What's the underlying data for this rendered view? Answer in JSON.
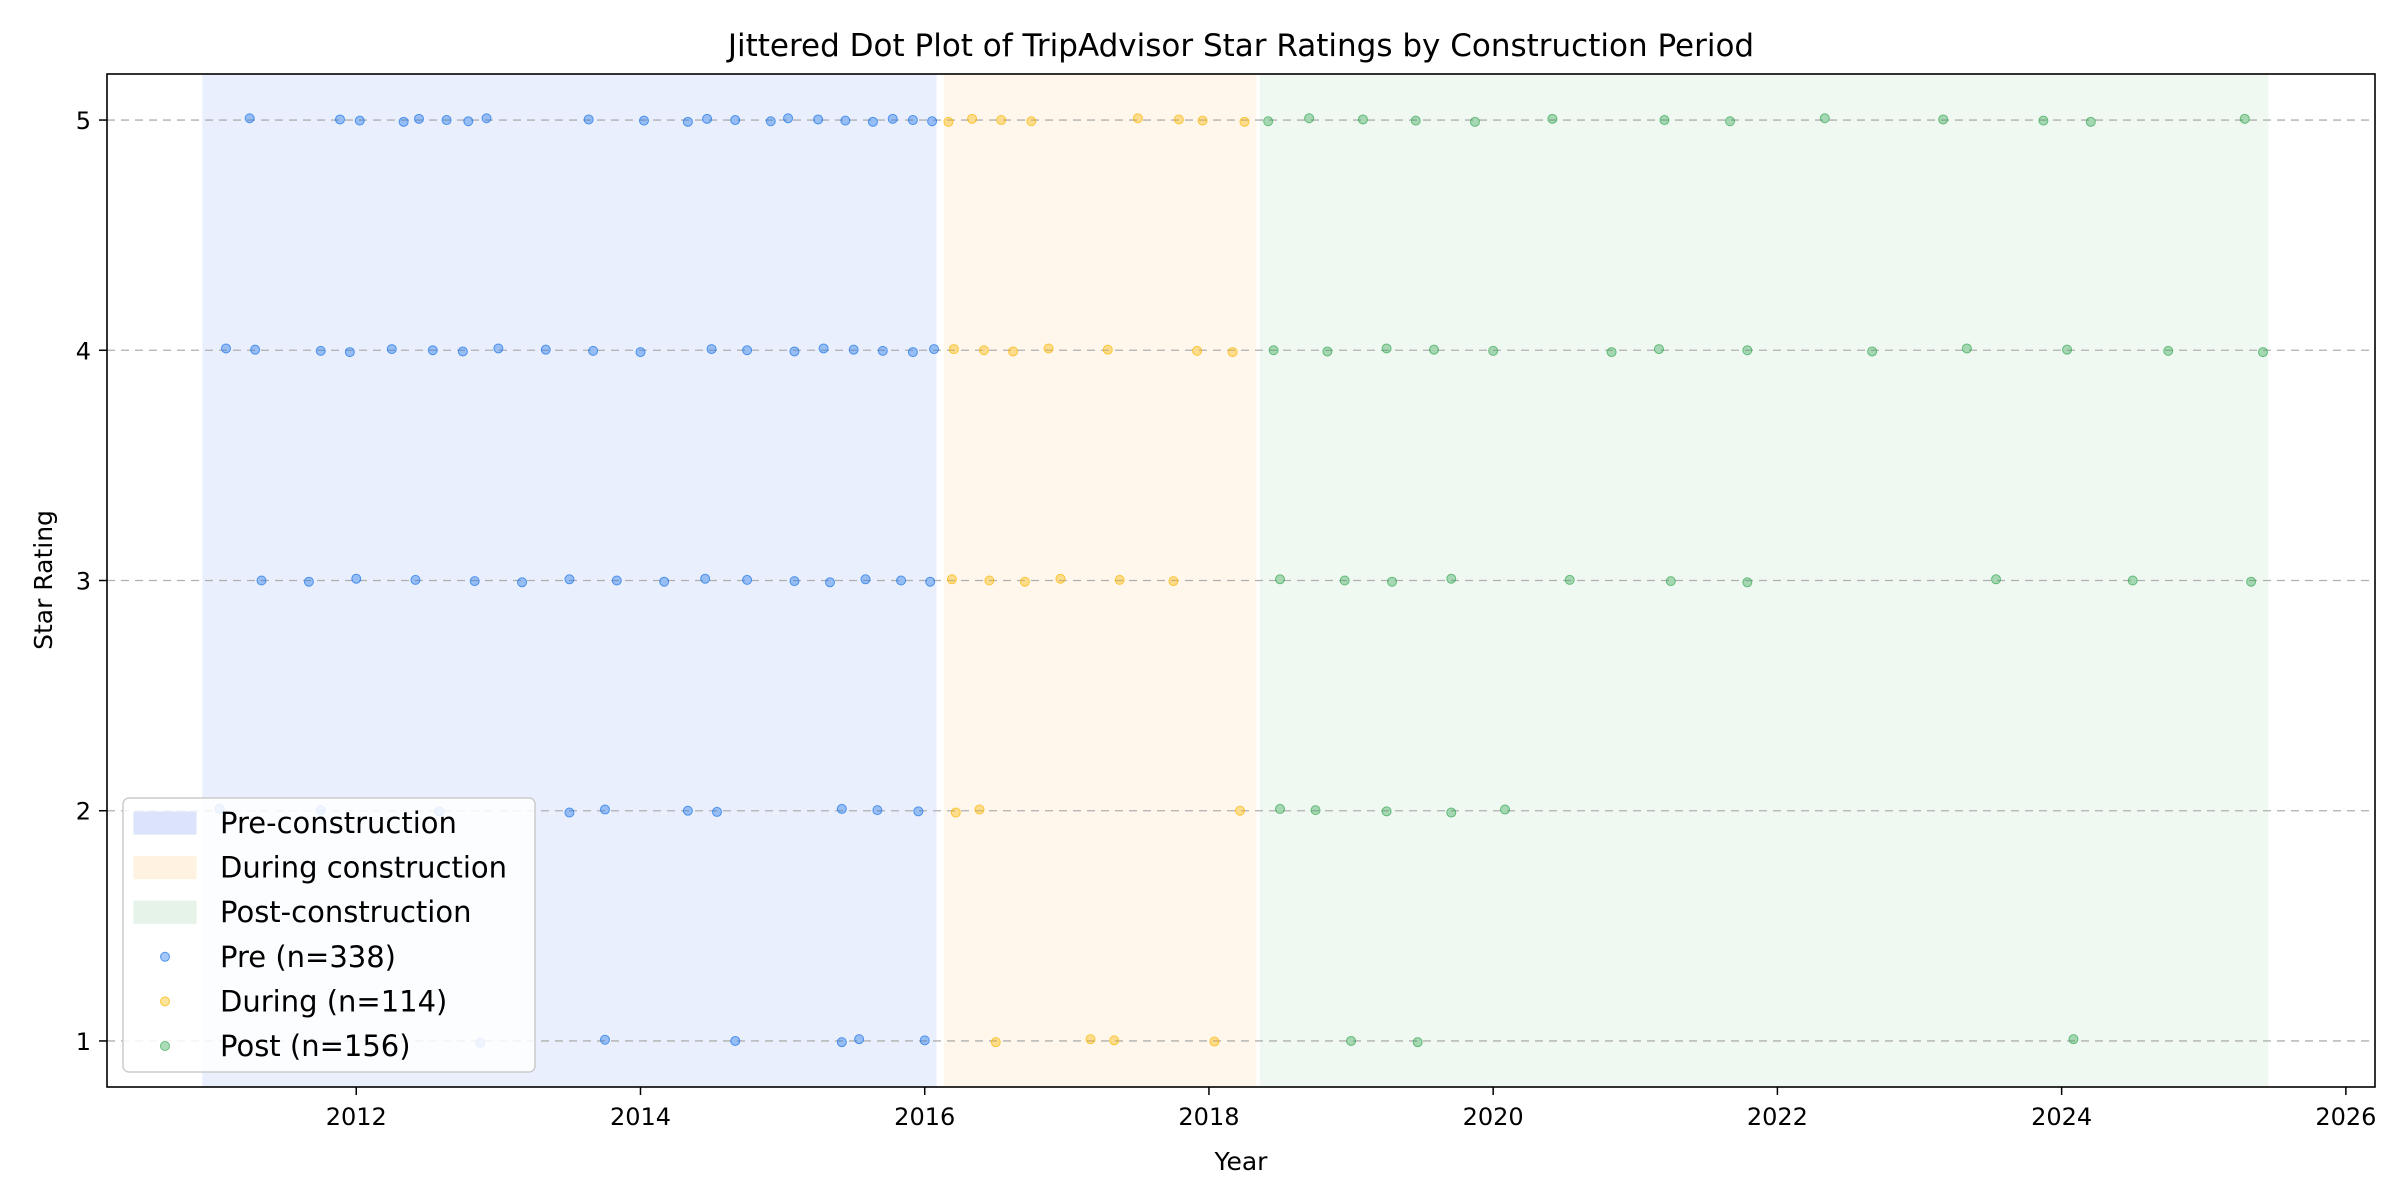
{
  "chart_data": {
    "type": "scatter",
    "title": "Jittered Dot Plot of TripAdvisor Star Ratings by Construction Period",
    "xlabel": "Year",
    "ylabel": "Star Rating",
    "xlim": [
      "2010-03-30",
      "2026-03-15"
    ],
    "ylim": [
      0.8,
      5.2
    ],
    "x_ticks": [
      "2012",
      "2014",
      "2016",
      "2018",
      "2020",
      "2022",
      "2024",
      "2026"
    ],
    "y_ticks": [
      1,
      2,
      3,
      4,
      5
    ],
    "grid": "horizontal dashed",
    "legend_position": "bottom-left",
    "periods": [
      {
        "name": "Pre-construction",
        "start": "2010-12-01",
        "end": "2016-02-01",
        "color": "#dbe4fa"
      },
      {
        "name": "During construction",
        "start": "2016-02-20",
        "end": "2018-05-01",
        "color": "#fff2e0"
      },
      {
        "name": "Post-construction",
        "start": "2018-05-10",
        "end": "2025-06-15",
        "color": "#e6f3e9"
      }
    ],
    "series": [
      {
        "name": "Pre (n=338)",
        "color": "#1a73e8",
        "points": [
          {
            "x": "2011-04-01",
            "y": 5
          },
          {
            "x": "2011-11-20",
            "y": 5
          },
          {
            "x": "2012-01-10",
            "y": 5
          },
          {
            "x": "2012-05-01",
            "y": 5
          },
          {
            "x": "2012-06-10",
            "y": 5
          },
          {
            "x": "2012-08-20",
            "y": 5
          },
          {
            "x": "2012-10-15",
            "y": 5
          },
          {
            "x": "2012-12-01",
            "y": 5
          },
          {
            "x": "2013-08-20",
            "y": 5
          },
          {
            "x": "2014-01-10",
            "y": 5
          },
          {
            "x": "2014-05-01",
            "y": 5
          },
          {
            "x": "2014-06-20",
            "y": 5
          },
          {
            "x": "2014-09-01",
            "y": 5
          },
          {
            "x": "2014-12-01",
            "y": 5
          },
          {
            "x": "2015-01-15",
            "y": 5
          },
          {
            "x": "2015-04-01",
            "y": 5
          },
          {
            "x": "2015-06-10",
            "y": 5
          },
          {
            "x": "2015-08-20",
            "y": 5
          },
          {
            "x": "2015-10-10",
            "y": 5
          },
          {
            "x": "2015-12-01",
            "y": 5
          },
          {
            "x": "2016-01-20",
            "y": 5
          },
          {
            "x": "2011-02-01",
            "y": 4
          },
          {
            "x": "2011-04-15",
            "y": 4
          },
          {
            "x": "2011-10-01",
            "y": 4
          },
          {
            "x": "2011-12-15",
            "y": 4
          },
          {
            "x": "2012-04-01",
            "y": 4
          },
          {
            "x": "2012-07-15",
            "y": 4
          },
          {
            "x": "2012-10-01",
            "y": 4
          },
          {
            "x": "2013-01-01",
            "y": 4
          },
          {
            "x": "2013-05-01",
            "y": 4
          },
          {
            "x": "2013-09-01",
            "y": 4
          },
          {
            "x": "2014-01-01",
            "y": 4
          },
          {
            "x": "2014-07-01",
            "y": 4
          },
          {
            "x": "2014-10-01",
            "y": 4
          },
          {
            "x": "2015-02-01",
            "y": 4
          },
          {
            "x": "2015-04-15",
            "y": 4
          },
          {
            "x": "2015-07-01",
            "y": 4
          },
          {
            "x": "2015-09-15",
            "y": 4
          },
          {
            "x": "2015-12-01",
            "y": 4
          },
          {
            "x": "2016-01-25",
            "y": 4
          },
          {
            "x": "2011-05-01",
            "y": 3
          },
          {
            "x": "2011-09-01",
            "y": 3
          },
          {
            "x": "2012-01-01",
            "y": 3
          },
          {
            "x": "2012-06-01",
            "y": 3
          },
          {
            "x": "2012-11-01",
            "y": 3
          },
          {
            "x": "2013-03-01",
            "y": 3
          },
          {
            "x": "2013-07-01",
            "y": 3
          },
          {
            "x": "2013-11-01",
            "y": 3
          },
          {
            "x": "2014-03-01",
            "y": 3
          },
          {
            "x": "2014-06-15",
            "y": 3
          },
          {
            "x": "2014-10-01",
            "y": 3
          },
          {
            "x": "2015-02-01",
            "y": 3
          },
          {
            "x": "2015-05-01",
            "y": 3
          },
          {
            "x": "2015-08-01",
            "y": 3
          },
          {
            "x": "2015-11-01",
            "y": 3
          },
          {
            "x": "2016-01-15",
            "y": 3
          },
          {
            "x": "2011-01-15",
            "y": 2
          },
          {
            "x": "2011-10-01",
            "y": 2
          },
          {
            "x": "2012-08-01",
            "y": 2
          },
          {
            "x": "2013-07-01",
            "y": 2
          },
          {
            "x": "2013-10-01",
            "y": 2
          },
          {
            "x": "2014-05-01",
            "y": 2
          },
          {
            "x": "2014-07-15",
            "y": 2
          },
          {
            "x": "2015-06-01",
            "y": 2
          },
          {
            "x": "2015-09-01",
            "y": 2
          },
          {
            "x": "2015-12-15",
            "y": 2
          },
          {
            "x": "2012-11-15",
            "y": 1
          },
          {
            "x": "2013-10-01",
            "y": 1
          },
          {
            "x": "2014-09-01",
            "y": 1
          },
          {
            "x": "2015-06-01",
            "y": 1
          },
          {
            "x": "2015-07-15",
            "y": 1
          },
          {
            "x": "2016-01-01",
            "y": 1
          }
        ]
      },
      {
        "name": "During (n=114)",
        "color": "#f9b700",
        "points": [
          {
            "x": "2016-03-01",
            "y": 5
          },
          {
            "x": "2016-05-01",
            "y": 5
          },
          {
            "x": "2016-07-15",
            "y": 5
          },
          {
            "x": "2016-10-01",
            "y": 5
          },
          {
            "x": "2017-07-01",
            "y": 5
          },
          {
            "x": "2017-10-15",
            "y": 5
          },
          {
            "x": "2017-12-15",
            "y": 5
          },
          {
            "x": "2018-04-01",
            "y": 5
          },
          {
            "x": "2016-03-15",
            "y": 4
          },
          {
            "x": "2016-06-01",
            "y": 4
          },
          {
            "x": "2016-08-15",
            "y": 4
          },
          {
            "x": "2016-11-15",
            "y": 4
          },
          {
            "x": "2017-04-15",
            "y": 4
          },
          {
            "x": "2017-12-01",
            "y": 4
          },
          {
            "x": "2018-03-01",
            "y": 4
          },
          {
            "x": "2016-03-10",
            "y": 3
          },
          {
            "x": "2016-06-15",
            "y": 3
          },
          {
            "x": "2016-09-15",
            "y": 3
          },
          {
            "x": "2016-12-15",
            "y": 3
          },
          {
            "x": "2017-05-15",
            "y": 3
          },
          {
            "x": "2017-10-01",
            "y": 3
          },
          {
            "x": "2016-03-20",
            "y": 2
          },
          {
            "x": "2016-05-20",
            "y": 2
          },
          {
            "x": "2018-03-20",
            "y": 2
          },
          {
            "x": "2016-07-01",
            "y": 1
          },
          {
            "x": "2017-03-01",
            "y": 1
          },
          {
            "x": "2017-05-01",
            "y": 1
          },
          {
            "x": "2018-01-15",
            "y": 1
          }
        ]
      },
      {
        "name": "Post (n=156)",
        "color": "#34a853",
        "points": [
          {
            "x": "2018-06-01",
            "y": 5
          },
          {
            "x": "2018-09-15",
            "y": 5
          },
          {
            "x": "2019-02-01",
            "y": 5
          },
          {
            "x": "2019-06-15",
            "y": 5
          },
          {
            "x": "2019-11-15",
            "y": 5
          },
          {
            "x": "2020-06-01",
            "y": 5
          },
          {
            "x": "2021-03-15",
            "y": 5
          },
          {
            "x": "2021-09-01",
            "y": 5
          },
          {
            "x": "2022-05-01",
            "y": 5
          },
          {
            "x": "2023-03-01",
            "y": 5
          },
          {
            "x": "2023-11-15",
            "y": 5
          },
          {
            "x": "2024-03-15",
            "y": 5
          },
          {
            "x": "2025-04-15",
            "y": 5
          },
          {
            "x": "2018-06-15",
            "y": 4
          },
          {
            "x": "2018-11-01",
            "y": 4
          },
          {
            "x": "2019-04-01",
            "y": 4
          },
          {
            "x": "2019-08-01",
            "y": 4
          },
          {
            "x": "2020-01-01",
            "y": 4
          },
          {
            "x": "2020-11-01",
            "y": 4
          },
          {
            "x": "2021-03-01",
            "y": 4
          },
          {
            "x": "2021-10-15",
            "y": 4
          },
          {
            "x": "2022-09-01",
            "y": 4
          },
          {
            "x": "2023-05-01",
            "y": 4
          },
          {
            "x": "2024-01-15",
            "y": 4
          },
          {
            "x": "2024-10-01",
            "y": 4
          },
          {
            "x": "2025-06-01",
            "y": 4
          },
          {
            "x": "2018-07-01",
            "y": 3
          },
          {
            "x": "2018-12-15",
            "y": 3
          },
          {
            "x": "2019-04-15",
            "y": 3
          },
          {
            "x": "2019-09-15",
            "y": 3
          },
          {
            "x": "2020-07-15",
            "y": 3
          },
          {
            "x": "2021-04-01",
            "y": 3
          },
          {
            "x": "2021-10-15",
            "y": 3
          },
          {
            "x": "2023-07-15",
            "y": 3
          },
          {
            "x": "2024-07-01",
            "y": 3
          },
          {
            "x": "2025-05-01",
            "y": 3
          },
          {
            "x": "2018-07-01",
            "y": 2
          },
          {
            "x": "2018-10-01",
            "y": 2
          },
          {
            "x": "2019-04-01",
            "y": 2
          },
          {
            "x": "2019-09-15",
            "y": 2
          },
          {
            "x": "2020-02-01",
            "y": 2
          },
          {
            "x": "2019-01-01",
            "y": 1
          },
          {
            "x": "2019-06-20",
            "y": 1
          },
          {
            "x": "2024-02-01",
            "y": 1
          }
        ]
      }
    ]
  }
}
